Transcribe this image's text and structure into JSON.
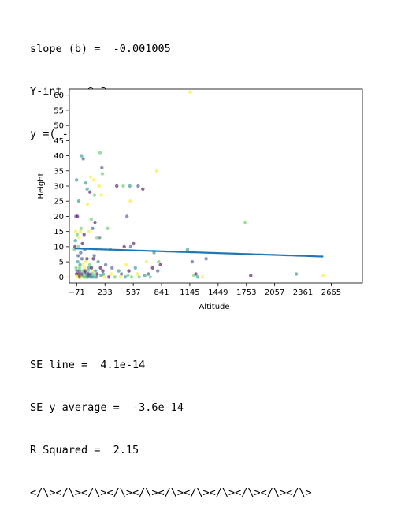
{
  "output_top": {
    "line1": "slope (b) =  -0.001005",
    "line2": "Y-int =  9.3",
    "line3": "y =( -0.001005 * x) +  9.304644"
  },
  "output_bottom": {
    "line1": "SE line =  4.1e-14",
    "line2": "SE y average =  -3.6e-14",
    "line3": "R Squared =  2.15",
    "line4": "</\\></\\></\\></\\></\\></\\></\\></\\></\\></\\></\\>"
  },
  "chart_data": {
    "type": "scatter",
    "xlabel": "Altitude",
    "ylabel": "Height",
    "xlim": [
      -150,
      3000
    ],
    "ylim": [
      -2,
      62
    ],
    "grid": false,
    "x_ticks": [
      -71,
      233,
      537,
      841,
      1145,
      1449,
      1753,
      2057,
      2361,
      2665
    ],
    "y_ticks": [
      0,
      5,
      10,
      15,
      20,
      25,
      30,
      35,
      40,
      45,
      50,
      55,
      60
    ],
    "regression": {
      "slope": -0.001005,
      "intercept": 9.304644,
      "color": "#1f77b4"
    },
    "point_colors": [
      "#440154",
      "#3b528b",
      "#21918c",
      "#5ec962",
      "#fde725"
    ],
    "points": [
      [
        -95,
        9
      ],
      [
        -90,
        10
      ],
      [
        -85,
        12
      ],
      [
        -82,
        15
      ],
      [
        -80,
        20
      ],
      [
        -78,
        3
      ],
      [
        -75,
        1
      ],
      [
        -72,
        32
      ],
      [
        -70,
        0.5
      ],
      [
        -68,
        2
      ],
      [
        -66,
        14
      ],
      [
        -64,
        20
      ],
      [
        -60,
        5
      ],
      [
        -58,
        0
      ],
      [
        -55,
        7
      ],
      [
        -52,
        10
      ],
      [
        -50,
        1
      ],
      [
        -48,
        25
      ],
      [
        -45,
        13
      ],
      [
        -42,
        2
      ],
      [
        -40,
        3
      ],
      [
        -38,
        0
      ],
      [
        -35,
        4
      ],
      [
        -30,
        15
      ],
      [
        -28,
        8
      ],
      [
        -25,
        16
      ],
      [
        -22,
        1
      ],
      [
        -20,
        40
      ],
      [
        -18,
        0
      ],
      [
        -15,
        6
      ],
      [
        -12,
        2
      ],
      [
        -10,
        11
      ],
      [
        -8,
        0.5
      ],
      [
        -5,
        4
      ],
      [
        0,
        39
      ],
      [
        5,
        0
      ],
      [
        8,
        14
      ],
      [
        10,
        1.5
      ],
      [
        12,
        3
      ],
      [
        15,
        9
      ],
      [
        18,
        0
      ],
      [
        20,
        2
      ],
      [
        25,
        31
      ],
      [
        28,
        5
      ],
      [
        30,
        1
      ],
      [
        35,
        0
      ],
      [
        40,
        6
      ],
      [
        42,
        29
      ],
      [
        45,
        24
      ],
      [
        48,
        0
      ],
      [
        50,
        2
      ],
      [
        55,
        1
      ],
      [
        60,
        3
      ],
      [
        62,
        15
      ],
      [
        65,
        0.5
      ],
      [
        70,
        4
      ],
      [
        72,
        28
      ],
      [
        75,
        0
      ],
      [
        80,
        33
      ],
      [
        82,
        1
      ],
      [
        85,
        19
      ],
      [
        88,
        3
      ],
      [
        90,
        0
      ],
      [
        95,
        2
      ],
      [
        100,
        16
      ],
      [
        105,
        1
      ],
      [
        108,
        6
      ],
      [
        110,
        0
      ],
      [
        115,
        32
      ],
      [
        118,
        7
      ],
      [
        120,
        27
      ],
      [
        125,
        18
      ],
      [
        130,
        2
      ],
      [
        135,
        9
      ],
      [
        140,
        0
      ],
      [
        145,
        13
      ],
      [
        150,
        1
      ],
      [
        160,
        5
      ],
      [
        170,
        30
      ],
      [
        175,
        13
      ],
      [
        180,
        41
      ],
      [
        185,
        3
      ],
      [
        190,
        0.5
      ],
      [
        195,
        27
      ],
      [
        200,
        36
      ],
      [
        205,
        34
      ],
      [
        210,
        2
      ],
      [
        215,
        1
      ],
      [
        225,
        0
      ],
      [
        240,
        4
      ],
      [
        260,
        16
      ],
      [
        275,
        0
      ],
      [
        290,
        9
      ],
      [
        300,
        1
      ],
      [
        310,
        3
      ],
      [
        340,
        0
      ],
      [
        360,
        30
      ],
      [
        380,
        2
      ],
      [
        400,
        0
      ],
      [
        410,
        1
      ],
      [
        430,
        30
      ],
      [
        440,
        10
      ],
      [
        450,
        0
      ],
      [
        460,
        4
      ],
      [
        470,
        20
      ],
      [
        480,
        0.5
      ],
      [
        490,
        2
      ],
      [
        500,
        30
      ],
      [
        505,
        25
      ],
      [
        510,
        10
      ],
      [
        520,
        0
      ],
      [
        540,
        11
      ],
      [
        560,
        3
      ],
      [
        580,
        1
      ],
      [
        590,
        30
      ],
      [
        600,
        0
      ],
      [
        640,
        29
      ],
      [
        660,
        0.5
      ],
      [
        680,
        5
      ],
      [
        700,
        1
      ],
      [
        720,
        0
      ],
      [
        745,
        3
      ],
      [
        760,
        8
      ],
      [
        790,
        35
      ],
      [
        800,
        2
      ],
      [
        810,
        5
      ],
      [
        830,
        4
      ],
      [
        1120,
        9
      ],
      [
        1150,
        61
      ],
      [
        1170,
        5
      ],
      [
        1190,
        0.5
      ],
      [
        1210,
        1
      ],
      [
        1230,
        0
      ],
      [
        1280,
        0
      ],
      [
        1320,
        6
      ],
      [
        1740,
        18
      ],
      [
        1800,
        0.5
      ],
      [
        2290,
        1
      ],
      [
        2580,
        0.5
      ]
    ]
  }
}
